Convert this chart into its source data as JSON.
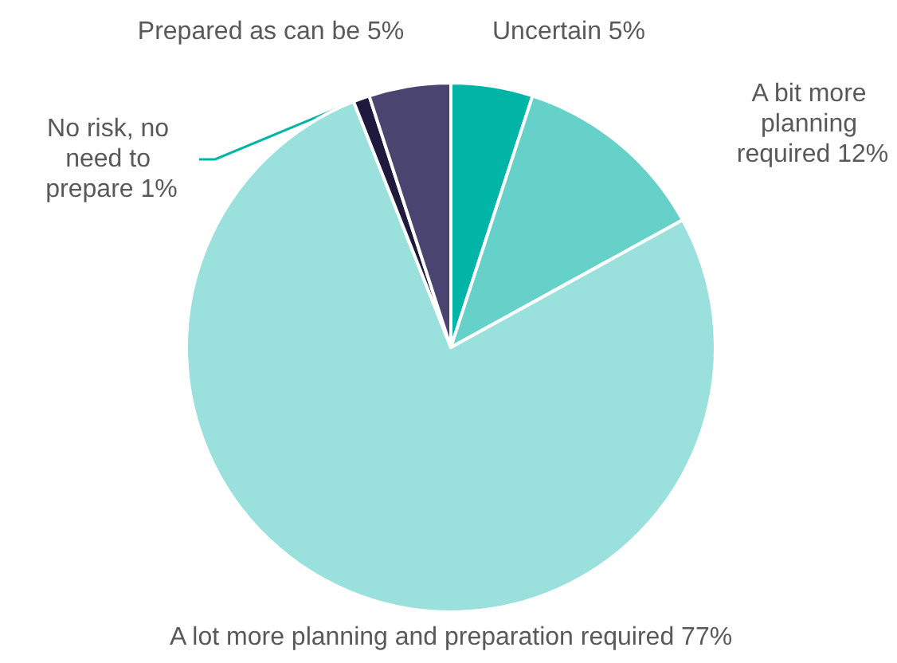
{
  "chart_data": {
    "type": "pie",
    "categories": [
      "Uncertain",
      "A bit more planning required",
      "A lot more planning and preparation required",
      "No risk, no need to prepare",
      "Prepared as can be"
    ],
    "values": [
      5,
      12,
      77,
      1,
      5
    ],
    "colors": [
      "#00b5a5",
      "#66d1c9",
      "#9ae0dc",
      "#1f1a3d",
      "#4a4570"
    ],
    "value_labels": [
      "5%",
      "12%",
      "77%",
      "1%",
      "5%"
    ]
  }
}
